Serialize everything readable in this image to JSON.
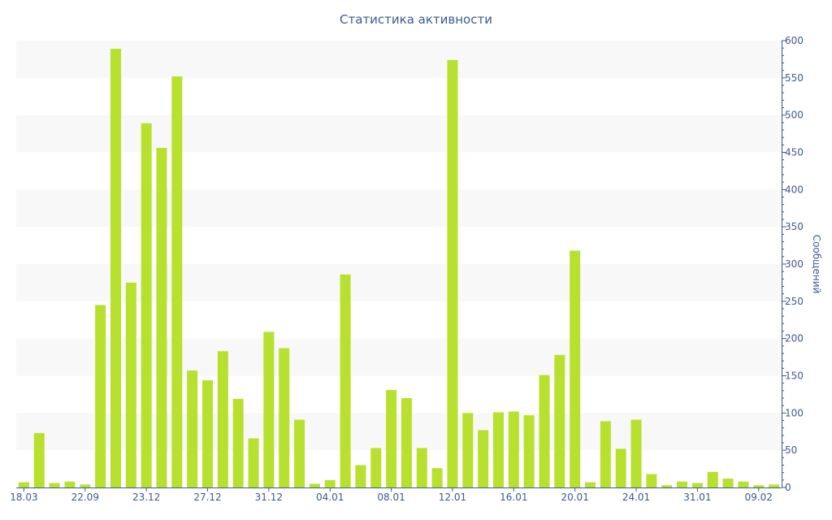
{
  "chart_data": {
    "type": "bar",
    "title": "Статистика активности",
    "ylabel": "Сообщений",
    "y_axis_side": "right",
    "ylim": [
      0,
      600
    ],
    "y_ticks": [
      0,
      50,
      100,
      150,
      200,
      250,
      300,
      350,
      400,
      450,
      500,
      550,
      600
    ],
    "grid": "alternating horizontal bands",
    "bar_color": "#b8e02e",
    "band_color": "#f8f8f8",
    "text_color": "#3c5a8f",
    "x_tick_labels": [
      {
        "label": "18.03",
        "bar_index": 0
      },
      {
        "label": "22.09",
        "bar_index": 4
      },
      {
        "label": "23.12",
        "bar_index": 8
      },
      {
        "label": "27.12",
        "bar_index": 12
      },
      {
        "label": "31.12",
        "bar_index": 16
      },
      {
        "label": "04.01",
        "bar_index": 20
      },
      {
        "label": "08.01",
        "bar_index": 24
      },
      {
        "label": "12.01",
        "bar_index": 28
      },
      {
        "label": "16.01",
        "bar_index": 32
      },
      {
        "label": "20.01",
        "bar_index": 36
      },
      {
        "label": "24.01",
        "bar_index": 40
      },
      {
        "label": "31.01",
        "bar_index": 44
      },
      {
        "label": "09.02",
        "bar_index": 48
      }
    ],
    "values": [
      7,
      73,
      6,
      8,
      4,
      245,
      589,
      275,
      489,
      456,
      552,
      157,
      144,
      183,
      119,
      66,
      209,
      187,
      91,
      5,
      10,
      286,
      30,
      53,
      131,
      120,
      53,
      26,
      574,
      100,
      77,
      101,
      102,
      97,
      151,
      178,
      318,
      7,
      89,
      52,
      91,
      18,
      3,
      8,
      6,
      21,
      12,
      8,
      3,
      4
    ]
  }
}
